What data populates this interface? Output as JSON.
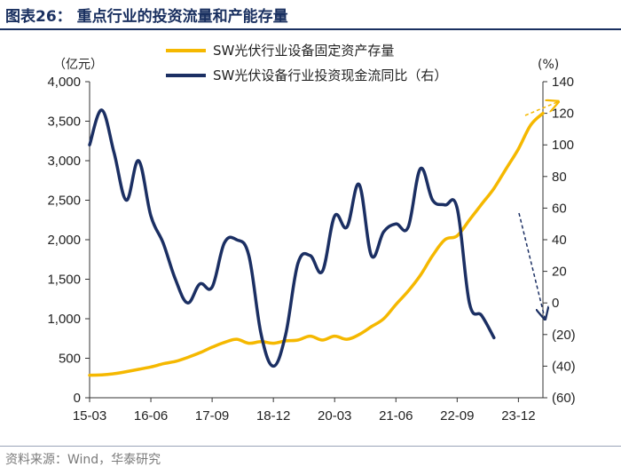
{
  "header": {
    "title": "图表26：  重点行业的投资流量和产能存量"
  },
  "footer": {
    "source": "资料来源：Wind，华泰研究"
  },
  "chart_data": {
    "type": "line",
    "left_axis_unit": "（亿元）",
    "right_axis_unit": "(%)",
    "ylim_left": [
      0,
      4000
    ],
    "ylim_right": [
      -60,
      140
    ],
    "y_left_ticks": [
      "0",
      "500",
      "1,000",
      "1,500",
      "2,000",
      "2,500",
      "3,000",
      "3,500",
      "4,000"
    ],
    "y_right_ticks": [
      "(60)",
      "(40)",
      "(20)",
      "0",
      "20",
      "40",
      "60",
      "80",
      "100",
      "120",
      "140"
    ],
    "x_tick_labels": [
      "15-03",
      "16-06",
      "17-09",
      "18-12",
      "20-03",
      "21-06",
      "22-09",
      "23-12"
    ],
    "grid": false,
    "legend_position": "top",
    "series": [
      {
        "name": "SW光伏行业设备固定资产存量",
        "axis": "left",
        "color": "#F5B800",
        "points": [
          [
            "15-03",
            285
          ],
          [
            "15-06",
            290
          ],
          [
            "15-09",
            305
          ],
          [
            "15-12",
            330
          ],
          [
            "16-03",
            360
          ],
          [
            "16-06",
            390
          ],
          [
            "16-09",
            430
          ],
          [
            "16-12",
            460
          ],
          [
            "17-03",
            510
          ],
          [
            "17-06",
            570
          ],
          [
            "17-09",
            640
          ],
          [
            "17-12",
            700
          ],
          [
            "18-03",
            740
          ],
          [
            "18-06",
            690
          ],
          [
            "18-09",
            710
          ],
          [
            "18-12",
            690
          ],
          [
            "19-03",
            720
          ],
          [
            "19-06",
            730
          ],
          [
            "19-09",
            780
          ],
          [
            "19-12",
            730
          ],
          [
            "20-03",
            780
          ],
          [
            "20-06",
            740
          ],
          [
            "20-09",
            800
          ],
          [
            "20-12",
            900
          ],
          [
            "21-03",
            1000
          ],
          [
            "21-06",
            1180
          ],
          [
            "21-09",
            1350
          ],
          [
            "21-12",
            1550
          ],
          [
            "22-03",
            1800
          ],
          [
            "22-06",
            2000
          ],
          [
            "22-09",
            2050
          ],
          [
            "22-12",
            2250
          ],
          [
            "23-03",
            2450
          ],
          [
            "23-06",
            2650
          ],
          [
            "23-09",
            2900
          ],
          [
            "23-12",
            3150
          ],
          [
            "24-03",
            3450
          ],
          [
            "24-06",
            3600
          ]
        ]
      },
      {
        "name": "SW光伏设备行业投资现金流同比（右）",
        "axis": "right",
        "color": "#1B2F63",
        "points": [
          [
            "15-03",
            100
          ],
          [
            "15-06",
            122
          ],
          [
            "15-09",
            95
          ],
          [
            "15-12",
            65
          ],
          [
            "16-03",
            90
          ],
          [
            "16-06",
            55
          ],
          [
            "16-09",
            38
          ],
          [
            "16-12",
            15
          ],
          [
            "17-03",
            0
          ],
          [
            "17-06",
            12
          ],
          [
            "17-09",
            10
          ],
          [
            "17-12",
            38
          ],
          [
            "18-03",
            40
          ],
          [
            "18-06",
            30
          ],
          [
            "18-09",
            -20
          ],
          [
            "18-12",
            -40
          ],
          [
            "19-03",
            -20
          ],
          [
            "19-06",
            25
          ],
          [
            "19-09",
            30
          ],
          [
            "19-12",
            20
          ],
          [
            "20-03",
            55
          ],
          [
            "20-06",
            48
          ],
          [
            "20-09",
            75
          ],
          [
            "20-12",
            30
          ],
          [
            "21-03",
            45
          ],
          [
            "21-06",
            50
          ],
          [
            "21-09",
            48
          ],
          [
            "21-12",
            85
          ],
          [
            "22-03",
            65
          ],
          [
            "22-06",
            62
          ],
          [
            "22-09",
            60
          ],
          [
            "22-12",
            0
          ],
          [
            "23-03",
            -8
          ],
          [
            "23-06",
            -22
          ]
        ]
      }
    ]
  }
}
